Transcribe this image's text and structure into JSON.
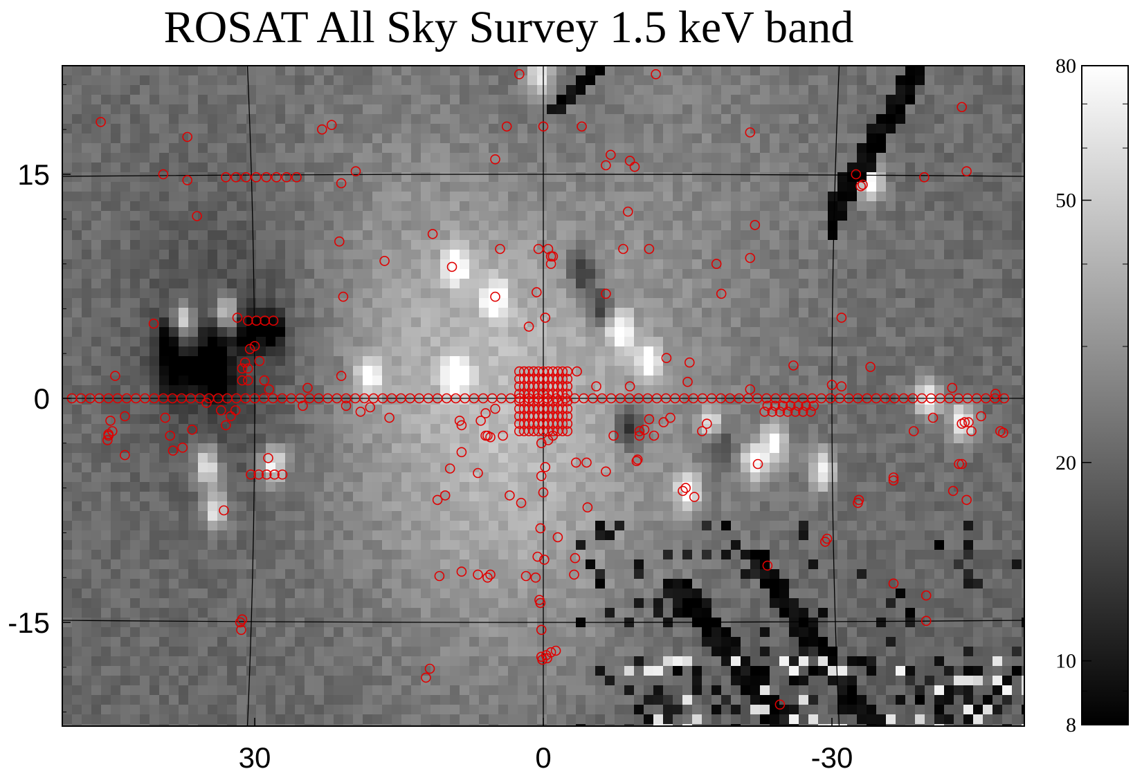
{
  "chart_data": {
    "type": "heatmap",
    "title": "ROSAT All Sky Survey 1.5 keV band",
    "xlabel": "",
    "ylabel": "",
    "x_ticks": [
      "30",
      "0",
      "-30"
    ],
    "x_tick_values": [
      30,
      0,
      -30
    ],
    "y_ticks": [
      "15",
      "0",
      "-15"
    ],
    "y_tick_values": [
      15,
      0,
      -15
    ],
    "xlim": [
      49,
      -49
    ],
    "ylim": [
      -22,
      22
    ],
    "grid": true,
    "colorscale": "grayscale",
    "colorbar": {
      "scale": "log",
      "range": [
        8,
        80
      ],
      "tick_labels": [
        "80",
        "50",
        "20",
        "10",
        "8"
      ],
      "tick_values": [
        80,
        50,
        20,
        10,
        8
      ]
    },
    "marker_color": "#e00000",
    "bright_spots": [
      [
        37.5,
        5.2
      ],
      [
        33,
        5.6
      ],
      [
        9,
        8.9
      ],
      [
        5,
        6.6
      ],
      [
        -11,
        2.5
      ],
      [
        -8,
        4.5
      ],
      [
        -17.5,
        -1.9
      ],
      [
        -22,
        -4.2
      ],
      [
        -29,
        -4.8
      ],
      [
        -15,
        -6.2
      ],
      [
        -40,
        0
      ],
      [
        -43.5,
        -1.5
      ],
      [
        -34,
        14.5
      ],
      [
        18,
        1.5
      ],
      [
        9,
        1.5
      ],
      [
        35,
        -4.5
      ],
      [
        34,
        -7.5
      ],
      [
        28,
        -4.5
      ],
      [
        0.5,
        21.7
      ],
      [
        -24,
        -3
      ]
    ],
    "dark_spots": [
      [
        36,
        2
      ],
      [
        33.5,
        1
      ],
      [
        38.5,
        1.5
      ],
      [
        30.5,
        4.5
      ],
      [
        28,
        4.5
      ],
      [
        34,
        3.5
      ],
      [
        39,
        3.8
      ],
      [
        -4,
        8.5
      ],
      [
        -6,
        6
      ],
      [
        -9,
        -2
      ],
      [
        -18,
        -2.8
      ]
    ],
    "points": [
      [
        46,
        18.5
      ],
      [
        39.5,
        15
      ],
      [
        37,
        17.5
      ],
      [
        37,
        14.6
      ],
      [
        36,
        12.2
      ],
      [
        23,
        18
      ],
      [
        22,
        18.3
      ],
      [
        21,
        14.4
      ],
      [
        19.5,
        15.2
      ],
      [
        21.2,
        10.5
      ],
      [
        20.8,
        6.8
      ],
      [
        16.5,
        9.2
      ],
      [
        11.5,
        11
      ],
      [
        9.5,
        8.8
      ],
      [
        5,
        16
      ],
      [
        5,
        6.8
      ],
      [
        4.5,
        10
      ],
      [
        0,
        18.2
      ],
      [
        -4,
        18.2
      ],
      [
        -6.5,
        15.6
      ],
      [
        -7,
        16.3
      ],
      [
        -9,
        15.9
      ],
      [
        -9.5,
        15.5
      ],
      [
        -8.8,
        12.5
      ],
      [
        -8.3,
        10
      ],
      [
        -6.5,
        7
      ],
      [
        -11,
        10
      ],
      [
        -0.8,
        9.5
      ],
      [
        -1,
        9.5
      ],
      [
        -0.5,
        10
      ],
      [
        0.5,
        10
      ],
      [
        -0.8,
        9
      ],
      [
        0.7,
        7.1
      ],
      [
        -0.2,
        5.4
      ],
      [
        1.5,
        4.8
      ],
      [
        -21.5,
        17.8
      ],
      [
        -22,
        11.6
      ],
      [
        -21.5,
        9.4
      ],
      [
        -18,
        9
      ],
      [
        -18.5,
        7
      ],
      [
        -31,
        5.4
      ],
      [
        -32.5,
        15
      ],
      [
        -33,
        14.2
      ],
      [
        -33.2,
        14.3
      ],
      [
        -39.6,
        14.8
      ],
      [
        -44,
        15.2
      ],
      [
        -43.5,
        19.5
      ],
      [
        31.8,
        5.4
      ],
      [
        44.5,
        1.5
      ],
      [
        40.5,
        5
      ],
      [
        30.5,
        3.3
      ],
      [
        31,
        2.4
      ],
      [
        30,
        3.5
      ],
      [
        29.5,
        2.5
      ],
      [
        29,
        1.2
      ],
      [
        28.5,
        0.6
      ],
      [
        24.5,
        0.7
      ],
      [
        21,
        1.5
      ],
      [
        -3.5,
        1.8
      ],
      [
        -5.5,
        0.8
      ],
      [
        -12.8,
        2.7
      ],
      [
        -15.2,
        2.4
      ],
      [
        -10,
        -2.5
      ],
      [
        -10,
        -2.2
      ],
      [
        -12.5,
        -1.6
      ],
      [
        -26,
        2.2
      ],
      [
        -31,
        0.8
      ],
      [
        -34,
        2.1
      ],
      [
        -42.5,
        0.7
      ],
      [
        -47,
        0.3
      ],
      [
        -47.5,
        -2.2
      ],
      [
        -47.8,
        -2.3
      ],
      [
        -45.5,
        -1.2
      ],
      [
        -44.2,
        -1.6
      ],
      [
        -43.8,
        -1.6
      ],
      [
        -43.5,
        -1.7
      ],
      [
        -40.5,
        -1.3
      ],
      [
        -38.5,
        -2.2
      ],
      [
        -43.5,
        -4.4
      ],
      [
        -44,
        -6.8
      ],
      [
        -36.4,
        -5.5
      ],
      [
        -36.4,
        -5.3
      ],
      [
        -44.5,
        -2.2
      ],
      [
        45,
        -1.5
      ],
      [
        44.8,
        -2.2
      ],
      [
        43.5,
        -3.8
      ],
      [
        43.5,
        -1.2
      ],
      [
        45.2,
        -2.5
      ],
      [
        45.3,
        -2.8
      ],
      [
        45.2,
        -2.4
      ],
      [
        39.3,
        -1.3
      ],
      [
        38.5,
        -3.5
      ],
      [
        38.8,
        -2.5
      ],
      [
        37.5,
        -3.3
      ],
      [
        36.5,
        -2.1
      ],
      [
        35,
        -0.3
      ],
      [
        33,
        -1.8
      ],
      [
        33.5,
        -0.8
      ],
      [
        32,
        -0.8
      ],
      [
        32.5,
        -1.2
      ],
      [
        28.6,
        -4
      ],
      [
        33.2,
        -7.5
      ],
      [
        31.3,
        -14.8
      ],
      [
        31.5,
        -15
      ],
      [
        31.4,
        -15.5
      ],
      [
        25,
        -0.5
      ],
      [
        20.5,
        -0.5
      ],
      [
        19,
        -0.9
      ],
      [
        18,
        -0.6
      ],
      [
        16,
        -1.3
      ],
      [
        11,
        -6.8
      ],
      [
        10.2,
        -6.5
      ],
      [
        9.7,
        -4.7
      ],
      [
        8.7,
        -1.5
      ],
      [
        8.5,
        -1.8
      ],
      [
        8.5,
        -3.6
      ],
      [
        6.8,
        -5
      ],
      [
        6,
        -1
      ],
      [
        6.5,
        -1.5
      ],
      [
        6,
        -2.5
      ],
      [
        5,
        -0.7
      ],
      [
        5.5,
        -2.6
      ],
      [
        5.8,
        -2.5
      ],
      [
        4.2,
        -2.5
      ],
      [
        3.5,
        -6.5
      ],
      [
        2.3,
        -7
      ],
      [
        5.5,
        -11.8
      ],
      [
        5.8,
        -12
      ],
      [
        0.6,
        -10.6
      ],
      [
        -0.1,
        -10.8
      ],
      [
        0.3,
        -8.7
      ],
      [
        0,
        -6.3
      ],
      [
        0.2,
        -5.2
      ],
      [
        -0.2,
        -4.6
      ],
      [
        0.2,
        -3
      ],
      [
        -0.5,
        -2.8
      ],
      [
        -1,
        -2.5
      ],
      [
        -3.4,
        -4.3
      ],
      [
        -1.5,
        -9.3
      ],
      [
        -3.3,
        -10.7
      ],
      [
        -4.5,
        -4.3
      ],
      [
        -4.6,
        -7.3
      ],
      [
        -6.5,
        -4.9
      ],
      [
        -9.8,
        -4.1
      ],
      [
        -9.7,
        -4.2
      ],
      [
        -7.3,
        -2.5
      ],
      [
        -10.5,
        -2.1
      ],
      [
        -11.5,
        -2.5
      ],
      [
        -11,
        -1.4
      ],
      [
        -13.2,
        -1.3
      ],
      [
        -14.5,
        -6.2
      ],
      [
        -14.8,
        -6
      ],
      [
        -15.7,
        -6.6
      ],
      [
        -17,
        -1.7
      ],
      [
        -16.5,
        -2.2
      ],
      [
        -22.3,
        -4.4
      ],
      [
        -23.3,
        -11.2
      ],
      [
        -24.6,
        -20.5
      ],
      [
        -29.3,
        -9.6
      ],
      [
        -29.5,
        -9.4
      ],
      [
        -32.7,
        -7
      ],
      [
        -32.8,
        -6.8
      ],
      [
        -36.4,
        -12.4
      ],
      [
        -39.8,
        -13.2
      ],
      [
        -39.8,
        -14.9
      ],
      [
        -43.2,
        -4.4
      ],
      [
        -42.6,
        -6.2
      ],
      [
        -30,
        0.9
      ],
      [
        -21.5,
        0.6
      ],
      [
        -15,
        1.1
      ],
      [
        -9,
        0.8
      ],
      [
        12.2,
        -18.7
      ],
      [
        11.8,
        -18.1
      ],
      [
        0.2,
        -17.3
      ],
      [
        -0.4,
        -17.4
      ],
      [
        -0.3,
        -17.2
      ],
      [
        0.1,
        -17.5
      ],
      [
        -0.8,
        -17
      ],
      [
        -1.3,
        -16.9
      ],
      [
        0.2,
        -15.5
      ],
      [
        0.4,
        -13.5
      ],
      [
        0.3,
        -13.7
      ],
      [
        0.8,
        -12
      ],
      [
        10.8,
        -11.9
      ],
      [
        8.5,
        -11.6
      ],
      [
        6.8,
        -11.8
      ],
      [
        1.8,
        -11.9
      ],
      [
        -3.2,
        -11.8
      ],
      [
        3.8,
        18.2
      ],
      [
        2.5,
        21.7
      ],
      [
        -11.7,
        21.7
      ]
    ],
    "plane_line_points": {
      "latitude": 0,
      "x_from": 49,
      "x_to": -48.5,
      "step": 0.95
    },
    "row_lines": [
      {
        "y": 14.8,
        "x_from": 33,
        "x_to": 25.5,
        "step": 1.05
      },
      {
        "y": 5.2,
        "x_from": 30.7,
        "x_to": 27.2,
        "step": 0.88
      },
      {
        "y": -5.1,
        "x_from": 30.4,
        "x_to": 26.3,
        "step": 0.82
      },
      {
        "y": 2,
        "x_from": 31.3,
        "x_to": 30.1,
        "step": 0.6
      },
      {
        "y": 1.2,
        "x_from": 31.3,
        "x_to": 30.1,
        "step": 0.6
      },
      {
        "y": -0.5,
        "x_from": -23.3,
        "x_to": -28.5,
        "step": 0.8
      },
      {
        "y": -0.9,
        "x_from": -23,
        "x_to": -28,
        "step": 0.8
      }
    ],
    "center_cluster": {
      "x_from": 2.5,
      "x_to": -2.5,
      "y_from": -2.2,
      "y_to": 2.2,
      "step": 0.5
    }
  }
}
